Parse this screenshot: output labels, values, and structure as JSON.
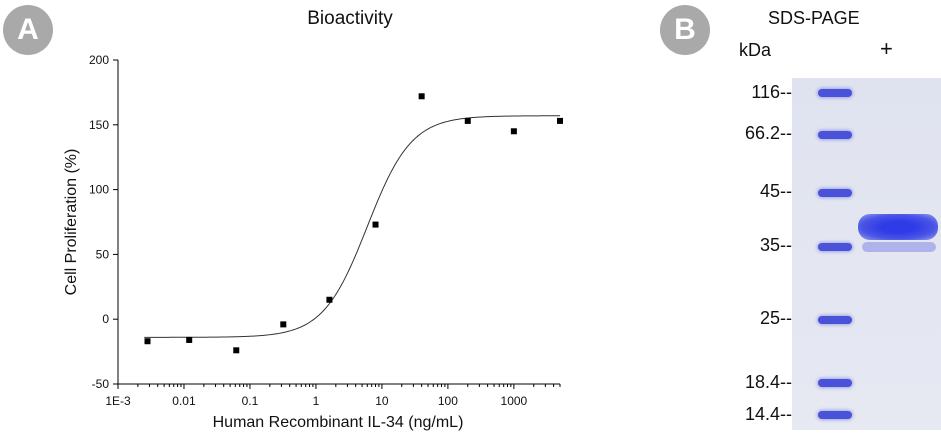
{
  "panels": {
    "a_label": "A",
    "b_label": "B"
  },
  "chart_data": {
    "type": "scatter",
    "title": "Bioactivity",
    "xlabel": "Human Recombinant IL-34 (ng/mL)",
    "ylabel": "Cell Proliferation (%)",
    "xscale": "log",
    "xlim": [
      0.001,
      5000
    ],
    "ylim": [
      -50,
      200
    ],
    "x_ticks": [
      0.001,
      0.01,
      0.1,
      1,
      10,
      100,
      1000
    ],
    "x_tick_labels": [
      "1E-3",
      "0.01",
      "0.1",
      "1",
      "10",
      "100",
      "1000"
    ],
    "y_ticks": [
      -50,
      0,
      50,
      100,
      150,
      200
    ],
    "y_tick_labels": [
      "-50",
      "0",
      "50",
      "100",
      "150",
      "200"
    ],
    "grid": false,
    "series": [
      {
        "points": [
          {
            "x": 0.0028,
            "y": -17
          },
          {
            "x": 0.012,
            "y": -16
          },
          {
            "x": 0.062,
            "y": -24
          },
          {
            "x": 0.32,
            "y": -4
          },
          {
            "x": 1.6,
            "y": 15
          },
          {
            "x": 8,
            "y": 73
          },
          {
            "x": 40,
            "y": 172
          },
          {
            "x": 200,
            "y": 153
          },
          {
            "x": 1000,
            "y": 145
          },
          {
            "x": 5000,
            "y": 153
          }
        ]
      }
    ],
    "fit": {
      "model": "4PL",
      "bottom": -14,
      "top": 157,
      "ec50": 6,
      "hill": 1.3
    },
    "colors": {
      "marker": "#000000",
      "curve": "#333333",
      "axis": "#000000"
    }
  },
  "gel": {
    "title": "SDS-PAGE",
    "unit": "kDa",
    "lane_label": "+",
    "markers": [
      {
        "label": "116--",
        "kda": 116
      },
      {
        "label": "66.2--",
        "kda": 66.2
      },
      {
        "label": "45--",
        "kda": 45
      },
      {
        "label": "35--",
        "kda": 35
      },
      {
        "label": "25--",
        "kda": 25
      },
      {
        "label": "18.4--",
        "kda": 18.4
      },
      {
        "label": "14.4--",
        "kda": 14.4
      }
    ],
    "band_color": "#3a44e0"
  }
}
